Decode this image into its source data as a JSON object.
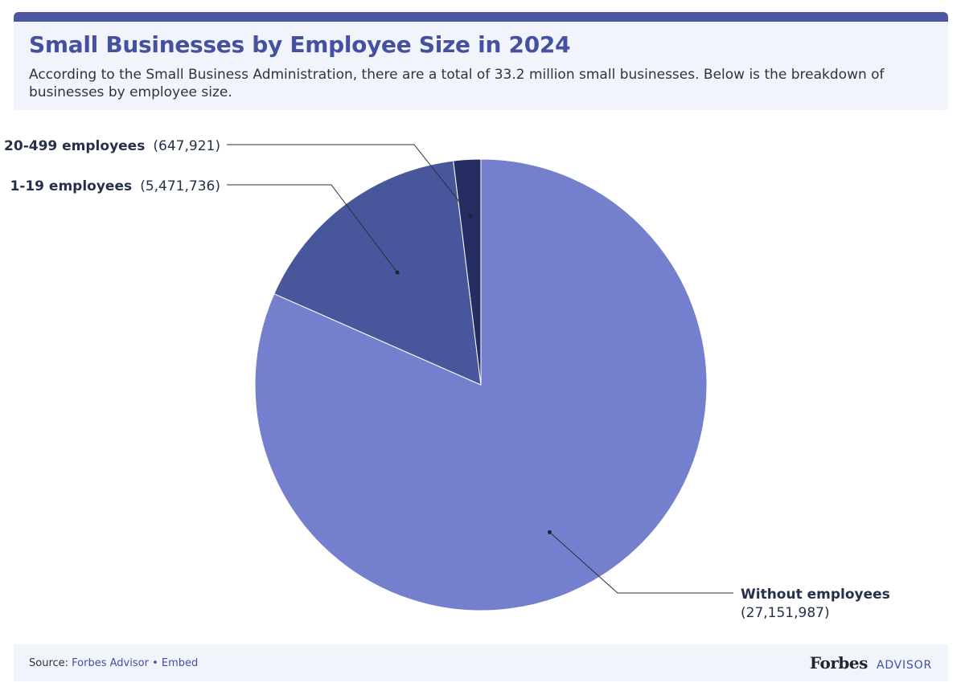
{
  "header": {
    "title": "Small Businesses by Employee Size in 2024",
    "subtitle": "According to the Small Business Administration, there are a total of 33.2 million small businesses. Below is the breakdown of businesses by employee size."
  },
  "chart_data": {
    "type": "pie",
    "title": "Small Businesses by Employee Size in 2024",
    "total_label": "33.2 million",
    "slices": [
      {
        "label": "Without employees",
        "value": 27151987,
        "value_label": "(27,151,987)",
        "color": "#7480cd"
      },
      {
        "label": "1-19 employees",
        "value": 5471736,
        "value_label": "(5,471,736)",
        "color": "#48569c"
      },
      {
        "label": "20-499 employees",
        "value": 647921,
        "value_label": "(647,921)",
        "color": "#252d62"
      }
    ]
  },
  "footer": {
    "source_prefix": "Source:",
    "source_link": "Forbes Advisor",
    "separator": "•",
    "embed_link": "Embed",
    "brand_name": "Forbes",
    "brand_suffix": "ADVISOR"
  },
  "colors": {
    "accent": "#4b58a0",
    "title": "#4450a0",
    "panel_bg": "#f1f4fa",
    "label_text": "#26304a"
  }
}
